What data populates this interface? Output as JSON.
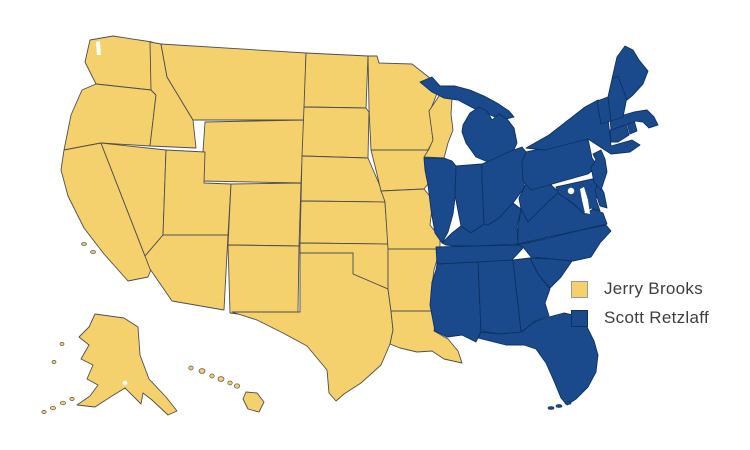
{
  "legend": {
    "items": [
      {
        "label": "Jerry Brooks",
        "owner": "jerry"
      },
      {
        "label": "Scott Retzlaff",
        "owner": "scott"
      }
    ]
  },
  "owners": {
    "jerry": {
      "name": "Jerry Brooks",
      "fill": "#F5D16E",
      "stroke": "#4E4E4E",
      "swatch_border": "#9a9a9a"
    },
    "scott": {
      "name": "Scott Retzlaff",
      "fill": "#1A4A8C",
      "stroke": "#0C3263",
      "swatch_border": "#0C3263"
    }
  },
  "colors": {
    "background": "#FFFFFF",
    "legend_text": "#3E3E3E",
    "water": "#FFFFFF"
  },
  "assignments": {
    "WA": "jerry",
    "OR": "jerry",
    "CA": "jerry",
    "NV": "jerry",
    "ID": "jerry",
    "MT": "jerry",
    "WY": "jerry",
    "UT": "jerry",
    "CO": "jerry",
    "AZ": "jerry",
    "NM": "jerry",
    "ND": "jerry",
    "SD": "jerry",
    "NE": "jerry",
    "KS": "jerry",
    "OK": "jerry",
    "TX": "jerry",
    "MN": "jerry",
    "IA": "jerry",
    "MO": "jerry",
    "AR": "jerry",
    "LA": "jerry",
    "WI": "jerry",
    "AK": "jerry",
    "HI": "jerry",
    "MI": "scott",
    "IL": "scott",
    "IN": "scott",
    "OH": "scott",
    "KY": "scott",
    "TN": "scott",
    "MS": "scott",
    "AL": "scott",
    "GA": "scott",
    "FL": "scott",
    "SC": "scott",
    "NC": "scott",
    "VA": "scott",
    "WV": "scott",
    "MD": "scott",
    "DE": "scott",
    "NJ": "scott",
    "PA": "scott",
    "NY": "scott",
    "CT": "scott",
    "RI": "scott",
    "MA": "scott",
    "VT": "scott",
    "NH": "scott",
    "ME": "scott"
  }
}
